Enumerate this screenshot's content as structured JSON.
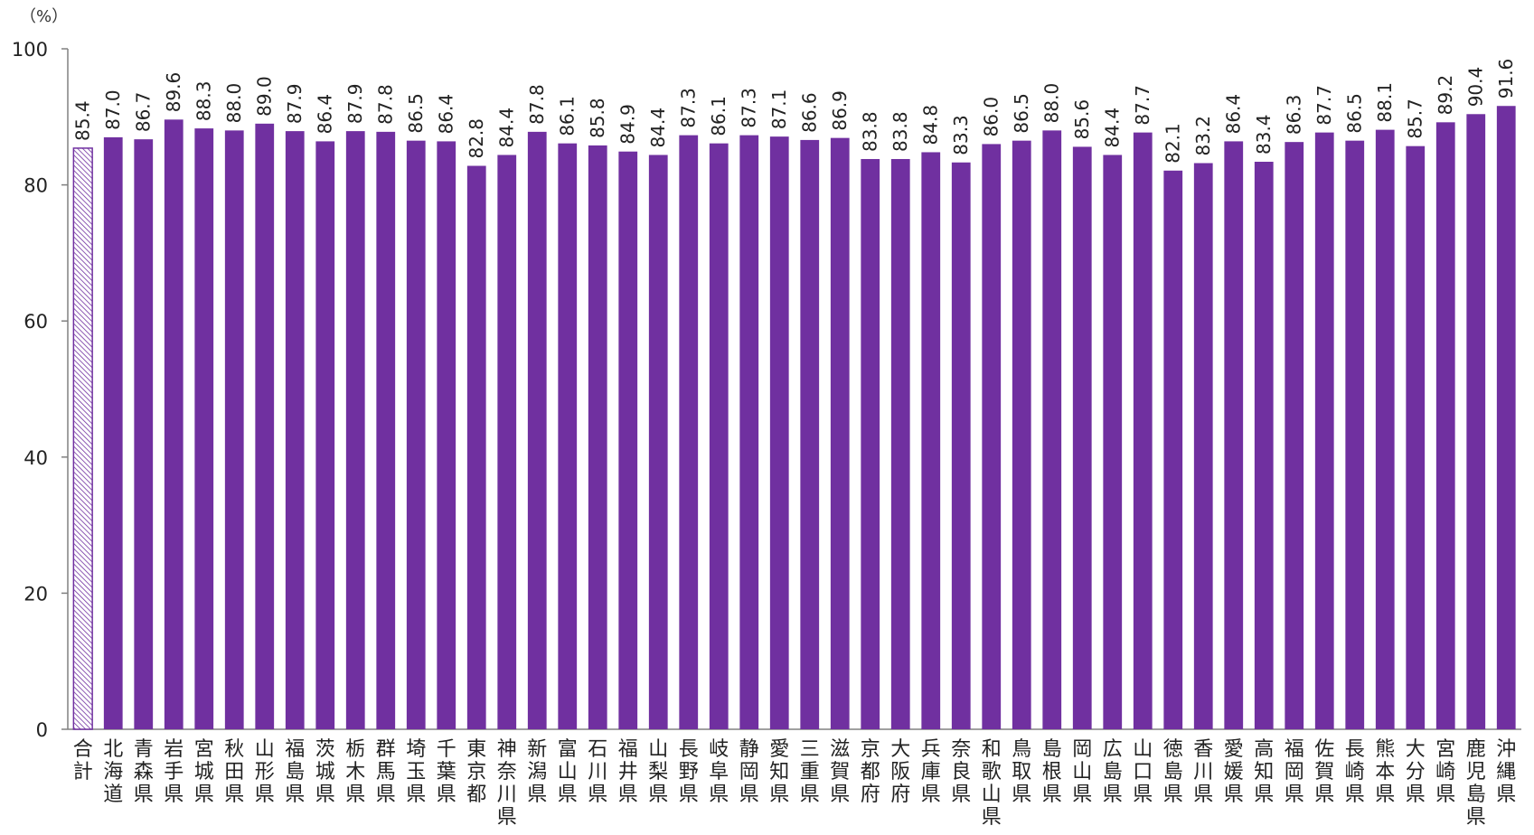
{
  "chart_data": {
    "type": "bar",
    "unit_label": "（%）",
    "ylim": [
      0,
      100
    ],
    "yticks": [
      "0",
      "20",
      "40",
      "60",
      "80",
      "100"
    ],
    "grid": false,
    "legend": false,
    "categories": [
      "合計",
      "北海道",
      "青森県",
      "岩手県",
      "宮城県",
      "秋田県",
      "山形県",
      "福島県",
      "茨城県",
      "栃木県",
      "群馬県",
      "埼玉県",
      "千葉県",
      "東京都",
      "神奈川県",
      "新潟県",
      "富山県",
      "石川県",
      "福井県",
      "山梨県",
      "長野県",
      "岐阜県",
      "静岡県",
      "愛知県",
      "三重県",
      "滋賀県",
      "京都府",
      "大阪府",
      "兵庫県",
      "奈良県",
      "和歌山県",
      "鳥取県",
      "島根県",
      "岡山県",
      "広島県",
      "山口県",
      "徳島県",
      "香川県",
      "愛媛県",
      "高知県",
      "福岡県",
      "佐賀県",
      "長崎県",
      "熊本県",
      "大分県",
      "宮崎県",
      "鹿児島県",
      "沖縄県"
    ],
    "value_labels": [
      "85.4",
      "87.0",
      "86.7",
      "89.6",
      "88.3",
      "88.0",
      "89.0",
      "87.9",
      "86.4",
      "87.9",
      "87.8",
      "86.5",
      "86.4",
      "82.8",
      "84.4",
      "87.8",
      "86.1",
      "85.8",
      "84.9",
      "84.4",
      "87.3",
      "86.1",
      "87.3",
      "87.1",
      "86.6",
      "86.9",
      "83.8",
      "83.8",
      "84.8",
      "83.3",
      "86.0",
      "86.5",
      "88.0",
      "85.6",
      "84.4",
      "87.7",
      "82.1",
      "83.2",
      "86.4",
      "83.4",
      "86.3",
      "87.7",
      "86.5",
      "88.1",
      "85.7",
      "89.2",
      "90.4",
      "91.6"
    ],
    "values": [
      85.4,
      87.0,
      86.7,
      89.6,
      88.3,
      88.0,
      89.0,
      87.9,
      86.4,
      87.9,
      87.8,
      86.5,
      86.4,
      82.8,
      84.4,
      87.8,
      86.1,
      85.8,
      84.9,
      84.4,
      87.3,
      86.1,
      87.3,
      87.1,
      86.6,
      86.9,
      83.8,
      83.8,
      84.8,
      83.3,
      86.0,
      86.5,
      88.0,
      85.6,
      84.4,
      87.7,
      82.1,
      83.2,
      86.4,
      83.4,
      86.3,
      87.7,
      86.5,
      88.1,
      85.7,
      89.2,
      90.4,
      91.6
    ],
    "highlight_index": 0,
    "colors": {
      "bar": "#7030A0",
      "highlight_stroke": "#7030A0",
      "highlight_hatch": "#7030A0",
      "axis": "#808080"
    }
  }
}
